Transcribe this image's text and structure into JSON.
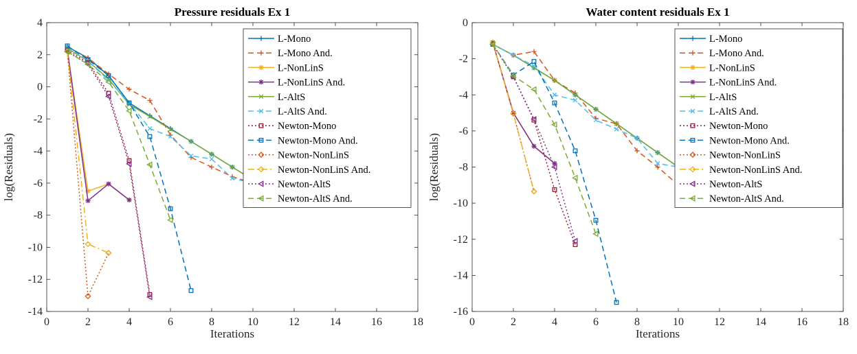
{
  "chart_data": [
    {
      "type": "line",
      "title": "Pressure residuals Ex 1",
      "xlabel": "Iterations",
      "ylabel": "log(Residuals)",
      "xlim": [
        0,
        18
      ],
      "ylim": [
        -14,
        4
      ],
      "xticks": [
        0,
        2,
        4,
        6,
        8,
        10,
        12,
        14,
        16,
        18
      ],
      "yticks": [
        4,
        2,
        0,
        -2,
        -4,
        -6,
        -8,
        -10,
        -12,
        -14
      ],
      "grid": false,
      "legend_position": "top-right",
      "series": [
        {
          "name": "L-Mono",
          "color": "#0072BD",
          "dash": "solid",
          "marker": "plus",
          "x": [
            1,
            2,
            3,
            4,
            5,
            6,
            7,
            8,
            9,
            10,
            11
          ],
          "y": [
            2.5,
            1.8,
            0.7,
            -1.0,
            -1.8,
            -2.6,
            -3.4,
            -4.2,
            -5.0,
            -5.8,
            -6.3
          ]
        },
        {
          "name": "L-Mono And.",
          "color": "#D95319",
          "dash": "dashed",
          "marker": "plus",
          "x": [
            1,
            2,
            3,
            4,
            5,
            6,
            7,
            8,
            9,
            10,
            11
          ],
          "y": [
            2.5,
            1.8,
            0.8,
            -0.15,
            -0.85,
            -3.0,
            -4.4,
            -5.0,
            -5.6,
            -6.0,
            -6.2
          ]
        },
        {
          "name": "L-NonLinS",
          "color": "#EDB120",
          "dash": "solid",
          "marker": "star",
          "x": [
            1,
            2,
            3,
            4
          ],
          "y": [
            2.3,
            -6.5,
            -6.05,
            -7.05
          ]
        },
        {
          "name": "L-NonLinS And.",
          "color": "#7E2F8E",
          "dash": "solid",
          "marker": "star",
          "x": [
            1,
            2,
            3,
            4
          ],
          "y": [
            2.3,
            -7.1,
            -6.05,
            -7.05
          ]
        },
        {
          "name": "L-AltS",
          "color": "#77AC30",
          "dash": "solid",
          "marker": "x",
          "x": [
            1,
            2,
            3,
            4,
            5,
            6,
            7,
            8,
            9,
            10,
            11
          ],
          "y": [
            2.4,
            1.6,
            0.5,
            -1.1,
            -1.85,
            -2.65,
            -3.4,
            -4.2,
            -5.0,
            -5.8,
            -6.3
          ]
        },
        {
          "name": "L-AltS And.",
          "color": "#4DBEEE",
          "dash": "dashed",
          "marker": "x",
          "x": [
            1,
            2,
            3,
            4,
            5,
            6,
            7,
            8,
            9,
            10,
            11
          ],
          "y": [
            2.5,
            1.6,
            0.4,
            -1.0,
            -2.6,
            -3.1,
            -4.3,
            -4.5,
            -5.7,
            -6.0,
            -6.2
          ]
        },
        {
          "name": "Newton-Mono",
          "color": "#A2142F",
          "dash": "dotted",
          "marker": "square",
          "x": [
            1,
            2,
            3,
            4,
            5
          ],
          "y": [
            2.3,
            1.5,
            -0.4,
            -4.6,
            -12.95
          ]
        },
        {
          "name": "Newton-Mono And.",
          "color": "#0072BD",
          "dash": "dashed",
          "marker": "square",
          "x": [
            1,
            2,
            3,
            4,
            5,
            6,
            7
          ],
          "y": [
            2.55,
            1.7,
            0.7,
            -1.0,
            -3.1,
            -7.6,
            -12.7
          ]
        },
        {
          "name": "Newton-NonLinS",
          "color": "#D95319",
          "dash": "dotted",
          "marker": "diamond",
          "x": [
            1,
            2,
            3
          ],
          "y": [
            2.2,
            -13.05,
            -10.35
          ]
        },
        {
          "name": "Newton-NonLinS And.",
          "color": "#EDB120",
          "dash": "dashdot",
          "marker": "diamond",
          "x": [
            1,
            2,
            3
          ],
          "y": [
            2.2,
            -9.8,
            -10.35
          ]
        },
        {
          "name": "Newton-AltS",
          "color": "#7E2F8E",
          "dash": "dotted",
          "marker": "triangle-left",
          "x": [
            1,
            2,
            3,
            4,
            5
          ],
          "y": [
            2.2,
            1.4,
            -0.6,
            -4.8,
            -13.1
          ]
        },
        {
          "name": "Newton-AltS And.",
          "color": "#77AC30",
          "dash": "dashed",
          "marker": "triangle-left",
          "x": [
            1,
            2,
            3,
            4,
            5,
            6
          ],
          "y": [
            2.2,
            1.4,
            0.3,
            -1.5,
            -4.85,
            -8.3
          ]
        }
      ]
    },
    {
      "type": "line",
      "title": "Water content residuals Ex 1",
      "xlabel": "Iterations",
      "ylabel": "log(Residuals)",
      "xlim": [
        0,
        18
      ],
      "ylim": [
        -16,
        0
      ],
      "xticks": [
        0,
        2,
        4,
        6,
        8,
        10,
        12,
        14,
        16,
        18
      ],
      "yticks": [
        0,
        -2,
        -4,
        -6,
        -8,
        -10,
        -12,
        -14,
        -16
      ],
      "grid": false,
      "legend_position": "top-right",
      "series": [
        {
          "name": "L-Mono",
          "color": "#0072BD",
          "dash": "solid",
          "marker": "plus",
          "x": [
            1,
            2,
            3,
            4,
            5,
            6,
            7,
            8,
            9,
            10,
            11
          ],
          "y": [
            -1.2,
            -1.8,
            -2.5,
            -3.2,
            -4.0,
            -4.8,
            -5.6,
            -6.4,
            -7.2,
            -8.0,
            -8.6
          ]
        },
        {
          "name": "L-Mono And.",
          "color": "#D95319",
          "dash": "dashed",
          "marker": "plus",
          "x": [
            1,
            2,
            3,
            4,
            5,
            6,
            7,
            8,
            9,
            10
          ],
          "y": [
            -1.2,
            -1.8,
            -1.6,
            -3.2,
            -3.9,
            -5.3,
            -5.6,
            -7.1,
            -8.0,
            -9.0
          ]
        },
        {
          "name": "L-NonLinS",
          "color": "#EDB120",
          "dash": "solid",
          "marker": "star",
          "x": [
            1,
            2,
            3,
            4
          ],
          "y": [
            -1.1,
            -5.0,
            -6.85,
            -7.8
          ]
        },
        {
          "name": "L-NonLinS And.",
          "color": "#7E2F8E",
          "dash": "solid",
          "marker": "star",
          "x": [
            1,
            2,
            3,
            4
          ],
          "y": [
            -1.1,
            -5.0,
            -6.85,
            -7.8
          ]
        },
        {
          "name": "L-AltS",
          "color": "#77AC30",
          "dash": "solid",
          "marker": "x",
          "x": [
            1,
            2,
            3,
            4,
            5,
            6,
            7,
            8,
            9,
            10,
            11
          ],
          "y": [
            -1.2,
            -1.8,
            -2.5,
            -3.2,
            -4.0,
            -4.8,
            -5.6,
            -6.4,
            -7.2,
            -8.0,
            -8.6
          ]
        },
        {
          "name": "L-AltS And.",
          "color": "#4DBEEE",
          "dash": "dashed",
          "marker": "x",
          "x": [
            1,
            2,
            3,
            4,
            5,
            6,
            7,
            8,
            9,
            10,
            11
          ],
          "y": [
            -1.2,
            -1.8,
            -2.4,
            -4.0,
            -4.3,
            -5.4,
            -5.9,
            -6.4,
            -7.8,
            -8.0,
            -8.3
          ]
        },
        {
          "name": "Newton-Mono",
          "color": "#A2142F",
          "dash": "dotted",
          "marker": "square",
          "x": [
            1,
            2,
            3,
            4,
            5
          ],
          "y": [
            -1.2,
            -3.0,
            -5.4,
            -9.25,
            -12.3
          ]
        },
        {
          "name": "Newton-Mono And.",
          "color": "#0072BD",
          "dash": "dashed",
          "marker": "square",
          "x": [
            1,
            2,
            3,
            4,
            5,
            6,
            7
          ],
          "y": [
            -1.2,
            -2.9,
            -2.15,
            -4.45,
            -7.1,
            -10.95,
            -15.5
          ]
        },
        {
          "name": "Newton-NonLinS",
          "color": "#D95319",
          "dash": "dotted",
          "marker": "diamond",
          "x": [
            1,
            2,
            3
          ],
          "y": [
            -1.1,
            -5.05,
            -9.35
          ]
        },
        {
          "name": "Newton-NonLinS And.",
          "color": "#EDB120",
          "dash": "dashdot",
          "marker": "diamond",
          "x": [
            1,
            2,
            3
          ],
          "y": [
            -1.1,
            -5.05,
            -9.35
          ]
        },
        {
          "name": "Newton-AltS",
          "color": "#7E2F8E",
          "dash": "dotted",
          "marker": "triangle-left",
          "x": [
            1,
            2,
            3,
            4,
            5
          ],
          "y": [
            -1.2,
            -3.0,
            -5.35,
            -8.0,
            -12.1
          ]
        },
        {
          "name": "Newton-AltS And.",
          "color": "#77AC30",
          "dash": "dashed",
          "marker": "triangle-left",
          "x": [
            1,
            2,
            3,
            4,
            5,
            6
          ],
          "y": [
            -1.2,
            -2.95,
            -3.7,
            -5.65,
            -8.6,
            -11.7
          ]
        }
      ]
    }
  ]
}
